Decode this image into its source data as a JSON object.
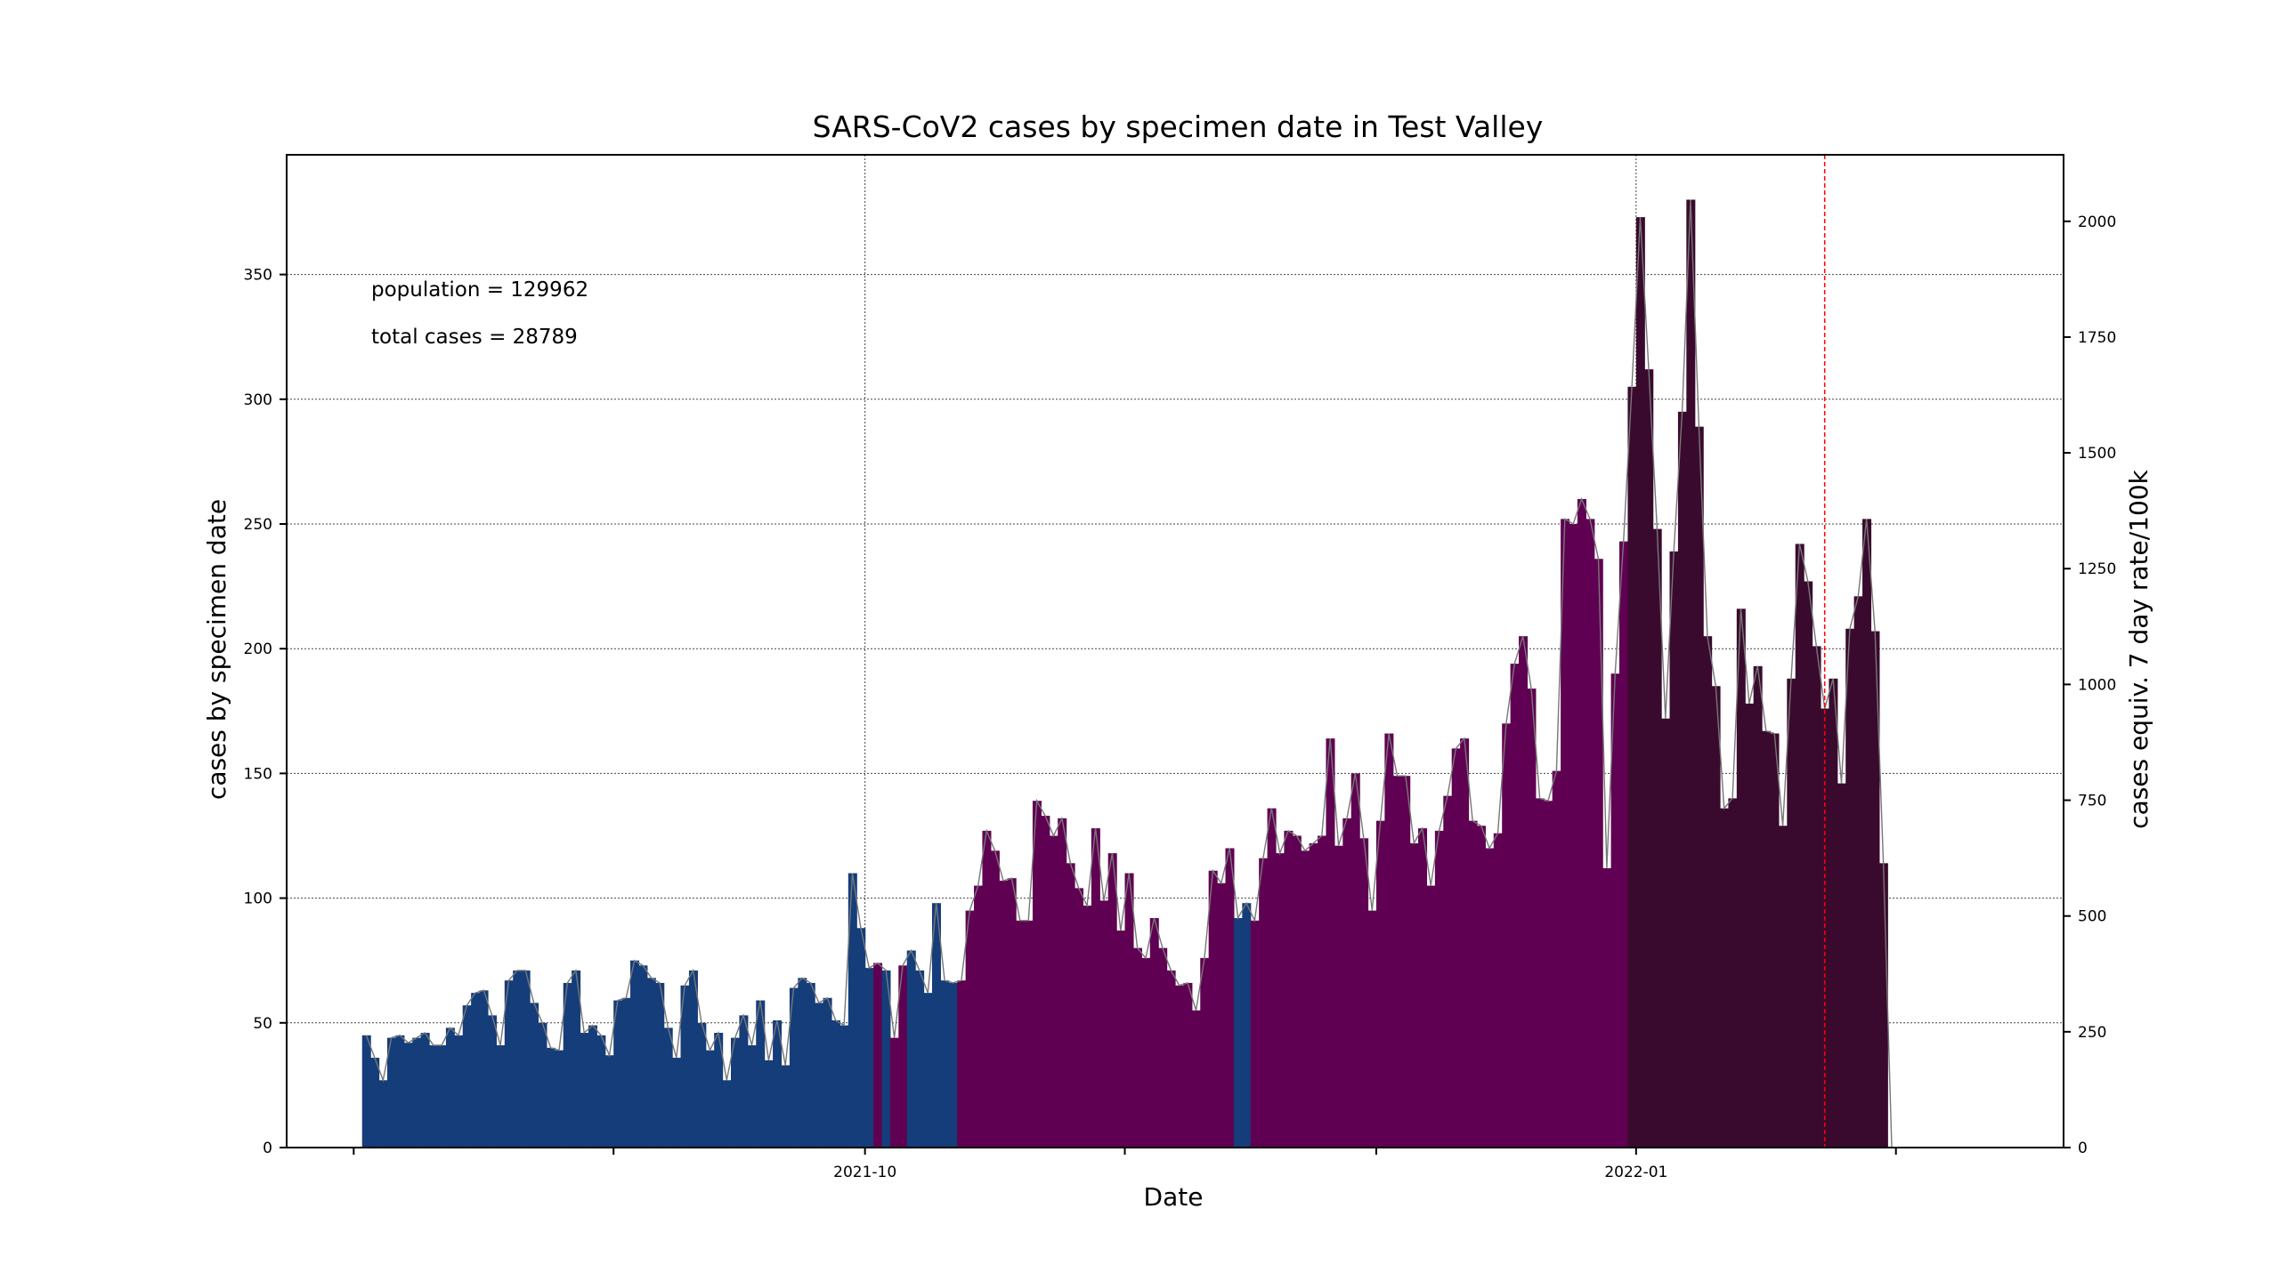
{
  "chart_data": {
    "type": "bar",
    "title": "SARS-CoV2 cases by specimen date in Test Valley",
    "xlabel": "Date",
    "ylabel": "cases by specimen date",
    "ylabel_right": "cases equiv. 7 day rate/100k",
    "annotations": [
      "population = 129962",
      "total cases = 28789"
    ],
    "x_tick_labels": [
      {
        "date": "2021-10-01",
        "label": "2021-10"
      },
      {
        "date": "2022-01-01",
        "label": "2022-01"
      }
    ],
    "x_minor_ticks": [
      "2021-08-01",
      "2021-09-01",
      "2021-11-01",
      "2021-12-01",
      "2022-02-01"
    ],
    "y_ticks": [
      0,
      50,
      100,
      150,
      200,
      250,
      300,
      350
    ],
    "y_right_ticks": [
      0,
      250,
      500,
      750,
      1000,
      1250,
      1500,
      1750,
      2000
    ],
    "ylim": [
      0,
      398
    ],
    "xlim": [
      "2021-07-24",
      "2022-02-21"
    ],
    "y_right_factor": 5.386,
    "grid": true,
    "first_date": "2021-08-02",
    "cutoff_date": "2022-01-23",
    "colors": {
      "blue": "#143d7a",
      "purple": "#600052",
      "dark": "#3a0a2e",
      "faded": "#9b7f94",
      "line": "#777777",
      "cutoff": "#ff0000"
    },
    "values": [
      45,
      36,
      27,
      44,
      45,
      42,
      44,
      46,
      41,
      41,
      48,
      45,
      57,
      62,
      63,
      53,
      41,
      67,
      71,
      71,
      58,
      50,
      40,
      39,
      66,
      71,
      46,
      49,
      45,
      37,
      59,
      60,
      75,
      73,
      68,
      66,
      48,
      36,
      65,
      71,
      50,
      39,
      46,
      27,
      44,
      53,
      41,
      59,
      35,
      51,
      33,
      64,
      68,
      66,
      58,
      60,
      51,
      49,
      110,
      88,
      72,
      74,
      71,
      44,
      73,
      79,
      71,
      62,
      98,
      67,
      66,
      67,
      95,
      105,
      127,
      119,
      107,
      108,
      91,
      91,
      139,
      133,
      125,
      132,
      114,
      104,
      97,
      128,
      99,
      118,
      87,
      110,
      80,
      76,
      92,
      80,
      71,
      65,
      66,
      55,
      76,
      111,
      106,
      120,
      92,
      98,
      91,
      116,
      136,
      118,
      127,
      125,
      119,
      122,
      125,
      164,
      121,
      132,
      150,
      124,
      95,
      131,
      166,
      149,
      149,
      122,
      128,
      105,
      127,
      141,
      160,
      164,
      131,
      129,
      120,
      126,
      170,
      194,
      205,
      184,
      140,
      139,
      151,
      252,
      250,
      260,
      252,
      236,
      112,
      190,
      243,
      305,
      373,
      312,
      248,
      172,
      239,
      295,
      380,
      289,
      205,
      185,
      136,
      140,
      216,
      178,
      193,
      167,
      166,
      129,
      188,
      242,
      227,
      201,
      176,
      188,
      146,
      208,
      221,
      252,
      207,
      114,
      0
    ],
    "color_keys": "BBBBBBBBBBBBBBBBBBBBBBBBBBBBBBBBBBBBBBBBBBBBBBBBBBBBBBBBBBBBBPBPPBBBBBBPPPPPPPPPPPPPPPPPPPPPPPPPPPPPPPPPBBPPPPPPPPPPPPPPPPPPPPPPPPPPPPPPPPPPPPPPPPPPPPPDDDDDDDDDDDDDDDDDDDDDDDDDDDDDDDDDDDDDDDDDDDDDDDDDDDDDDDDDDDDDDDDFFFFFF"
  }
}
